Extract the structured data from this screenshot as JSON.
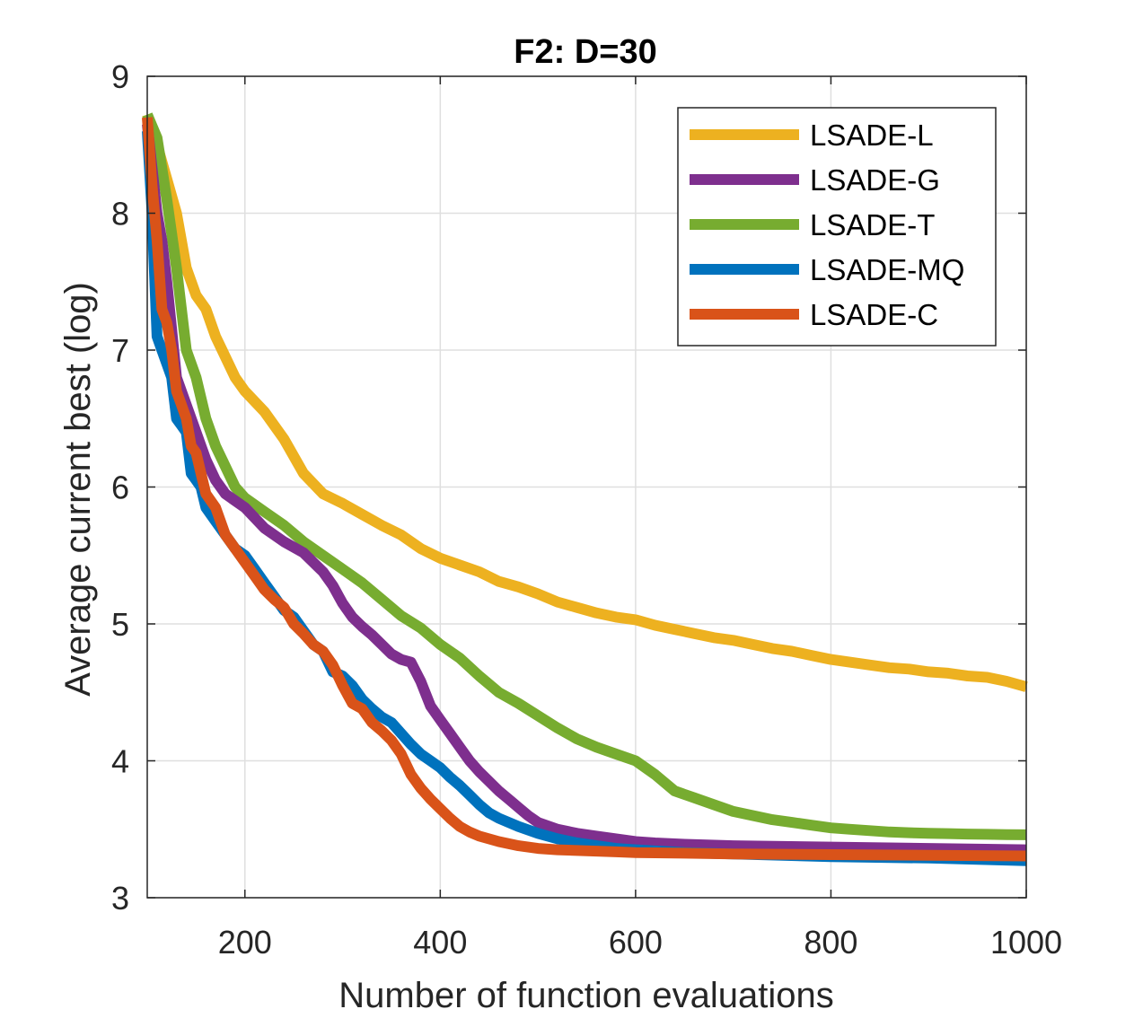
{
  "chart_data": {
    "type": "line",
    "title": "F2: D=30",
    "xlabel": "Number of function evaluations",
    "ylabel": "Average current best (log)",
    "xlim": [
      100,
      1000
    ],
    "ylim": [
      3,
      9
    ],
    "xticks": [
      200,
      400,
      600,
      800,
      1000
    ],
    "yticks": [
      3,
      4,
      5,
      6,
      7,
      8,
      9
    ],
    "grid": true,
    "legend_position": "top-right",
    "series": [
      {
        "name": "LSADE-L",
        "color": "#EDB120",
        "x": [
          100,
          110,
          120,
          130,
          140,
          150,
          160,
          170,
          180,
          190,
          200,
          220,
          240,
          260,
          280,
          300,
          320,
          340,
          360,
          380,
          400,
          420,
          440,
          460,
          480,
          500,
          520,
          540,
          560,
          580,
          600,
          620,
          640,
          660,
          680,
          700,
          720,
          740,
          760,
          780,
          800,
          820,
          840,
          860,
          880,
          900,
          920,
          940,
          960,
          980,
          1000
        ],
        "values": [
          8.72,
          8.5,
          8.25,
          8.0,
          7.6,
          7.4,
          7.3,
          7.1,
          6.95,
          6.8,
          6.7,
          6.55,
          6.35,
          6.1,
          5.95,
          5.88,
          5.8,
          5.72,
          5.65,
          5.55,
          5.48,
          5.43,
          5.38,
          5.31,
          5.27,
          5.22,
          5.16,
          5.12,
          5.08,
          5.05,
          5.03,
          4.99,
          4.96,
          4.93,
          4.9,
          4.88,
          4.85,
          4.82,
          4.8,
          4.77,
          4.74,
          4.72,
          4.7,
          4.68,
          4.67,
          4.65,
          4.64,
          4.62,
          4.61,
          4.58,
          4.54
        ]
      },
      {
        "name": "LSADE-G",
        "color": "#7E2F8E",
        "x": [
          100,
          110,
          115,
          120,
          130,
          140,
          150,
          160,
          170,
          180,
          190,
          200,
          220,
          240,
          260,
          270,
          280,
          290,
          300,
          310,
          320,
          330,
          340,
          350,
          360,
          370,
          380,
          390,
          400,
          410,
          420,
          430,
          440,
          450,
          460,
          470,
          480,
          490,
          500,
          520,
          540,
          560,
          580,
          600,
          620,
          650,
          700,
          800,
          900,
          1000
        ],
        "values": [
          8.65,
          8.0,
          7.8,
          7.5,
          6.8,
          6.6,
          6.4,
          6.2,
          6.05,
          5.95,
          5.9,
          5.85,
          5.7,
          5.6,
          5.52,
          5.45,
          5.38,
          5.28,
          5.15,
          5.05,
          4.98,
          4.92,
          4.85,
          4.78,
          4.74,
          4.72,
          4.58,
          4.4,
          4.3,
          4.2,
          4.1,
          4.0,
          3.92,
          3.85,
          3.78,
          3.72,
          3.66,
          3.6,
          3.55,
          3.5,
          3.47,
          3.45,
          3.43,
          3.41,
          3.4,
          3.39,
          3.38,
          3.37,
          3.36,
          3.35
        ]
      },
      {
        "name": "LSADE-T",
        "color": "#77AC30",
        "x": [
          100,
          110,
          120,
          130,
          140,
          150,
          160,
          170,
          180,
          190,
          200,
          220,
          240,
          260,
          280,
          300,
          320,
          340,
          360,
          380,
          400,
          420,
          440,
          460,
          480,
          500,
          520,
          540,
          560,
          580,
          600,
          620,
          640,
          660,
          680,
          700,
          720,
          740,
          760,
          780,
          800,
          820,
          840,
          860,
          880,
          900,
          920,
          940,
          960,
          980,
          1000
        ],
        "values": [
          8.72,
          8.55,
          8.1,
          7.6,
          7.0,
          6.8,
          6.5,
          6.3,
          6.15,
          6.0,
          5.92,
          5.82,
          5.72,
          5.6,
          5.5,
          5.4,
          5.3,
          5.18,
          5.06,
          4.97,
          4.85,
          4.75,
          4.62,
          4.5,
          4.42,
          4.33,
          4.24,
          4.16,
          4.1,
          4.05,
          4.0,
          3.9,
          3.78,
          3.73,
          3.68,
          3.63,
          3.6,
          3.57,
          3.55,
          3.53,
          3.51,
          3.5,
          3.49,
          3.48,
          3.475,
          3.47,
          3.468,
          3.465,
          3.463,
          3.461,
          3.46
        ]
      },
      {
        "name": "LSADE-MQ",
        "color": "#0072BD",
        "x": [
          100,
          105,
          110,
          115,
          120,
          125,
          130,
          135,
          140,
          145,
          150,
          155,
          160,
          170,
          180,
          190,
          200,
          210,
          220,
          230,
          240,
          250,
          260,
          270,
          280,
          290,
          300,
          310,
          320,
          330,
          340,
          350,
          360,
          370,
          380,
          390,
          400,
          410,
          420,
          430,
          440,
          450,
          460,
          480,
          500,
          520,
          540,
          560,
          580,
          600,
          650,
          700,
          800,
          900,
          1000
        ],
        "values": [
          8.6,
          8.0,
          7.1,
          7.0,
          6.9,
          6.8,
          6.5,
          6.45,
          6.4,
          6.1,
          6.05,
          6.0,
          5.85,
          5.75,
          5.65,
          5.55,
          5.5,
          5.4,
          5.3,
          5.2,
          5.1,
          5.05,
          4.95,
          4.85,
          4.8,
          4.65,
          4.62,
          4.55,
          4.45,
          4.38,
          4.32,
          4.28,
          4.2,
          4.12,
          4.05,
          4.0,
          3.95,
          3.88,
          3.82,
          3.75,
          3.68,
          3.62,
          3.58,
          3.52,
          3.47,
          3.43,
          3.4,
          3.38,
          3.36,
          3.35,
          3.33,
          3.32,
          3.3,
          3.29,
          3.27
        ]
      },
      {
        "name": "LSADE-C",
        "color": "#D95319",
        "x": [
          100,
          105,
          110,
          115,
          120,
          125,
          130,
          135,
          140,
          145,
          150,
          155,
          160,
          170,
          180,
          190,
          200,
          210,
          220,
          230,
          240,
          250,
          260,
          270,
          280,
          290,
          300,
          310,
          320,
          330,
          340,
          350,
          360,
          370,
          380,
          390,
          400,
          410,
          420,
          430,
          440,
          460,
          480,
          500,
          520,
          540,
          560,
          580,
          600,
          650,
          700,
          800,
          900,
          1000
        ],
        "values": [
          8.7,
          8.2,
          7.8,
          7.3,
          7.2,
          7.0,
          6.7,
          6.6,
          6.5,
          6.3,
          6.25,
          6.1,
          5.95,
          5.85,
          5.65,
          5.55,
          5.45,
          5.35,
          5.25,
          5.18,
          5.12,
          5.0,
          4.93,
          4.85,
          4.8,
          4.7,
          4.55,
          4.42,
          4.38,
          4.28,
          4.22,
          4.15,
          4.05,
          3.9,
          3.8,
          3.72,
          3.65,
          3.58,
          3.52,
          3.48,
          3.45,
          3.41,
          3.38,
          3.36,
          3.35,
          3.345,
          3.34,
          3.335,
          3.33,
          3.325,
          3.32,
          3.315,
          3.31,
          3.305
        ]
      }
    ]
  }
}
